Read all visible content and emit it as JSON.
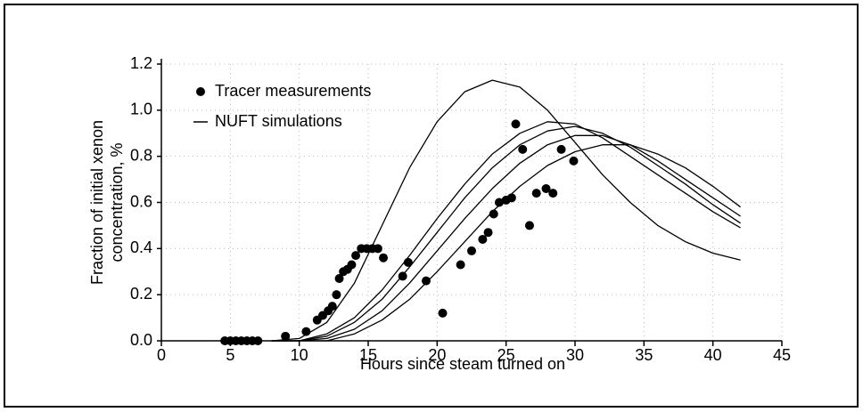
{
  "chart_data": {
    "type": "combo",
    "xlabel": "Hours since steam turned on",
    "ylabel": [
      "Fraction of initial xenon",
      "concentration, %"
    ],
    "xlim": [
      0,
      45
    ],
    "ylim": [
      0,
      1.2
    ],
    "xticks": [
      0,
      5,
      10,
      15,
      20,
      25,
      30,
      35,
      40,
      45
    ],
    "yticks": [
      {
        "value": 0,
        "label": "0.0"
      },
      0.2,
      0.4,
      0.6,
      0.8,
      {
        "value": 1,
        "label": "1.0"
      },
      1.2
    ],
    "grid": true,
    "legend": "upper left",
    "series": [
      {
        "name": "Tracer measurements",
        "type": "scatter",
        "color": "#000000",
        "x": [
          4.6,
          5,
          5.4,
          5.8,
          6.2,
          6.6,
          7,
          9,
          10.5,
          11.3,
          11.7,
          12.1,
          12.4,
          12.7,
          12.9,
          13.2,
          13.5,
          13.8,
          14.1,
          14.5,
          14.9,
          15.3,
          15.7,
          16.1,
          17.5,
          17.9,
          19.2,
          20.4,
          21.7,
          22.5,
          23.3,
          23.7,
          24.1,
          24.5,
          25,
          25.4,
          25.7,
          26.2,
          26.7,
          27.2,
          27.9,
          28.4,
          29,
          29.9
        ],
        "values": [
          0,
          0,
          0,
          0,
          0,
          0,
          0,
          0.02,
          0.04,
          0.09,
          0.11,
          0.13,
          0.15,
          0.2,
          0.27,
          0.3,
          0.31,
          0.33,
          0.37,
          0.4,
          0.4,
          0.4,
          0.4,
          0.36,
          0.28,
          0.34,
          0.26,
          0.12,
          0.33,
          0.39,
          0.44,
          0.47,
          0.55,
          0.6,
          0.61,
          0.62,
          0.94,
          0.83,
          0.5,
          0.64,
          0.66,
          0.64,
          0.83,
          0.78
        ]
      },
      {
        "name": "NUFT simulations",
        "type": "line",
        "color": "#000000",
        "x": [
          8,
          10,
          12,
          14,
          16,
          18,
          20,
          22,
          24,
          26,
          28,
          30,
          32,
          34,
          36,
          38,
          40,
          42
        ],
        "lines": [
          [
            0,
            0.01,
            0.08,
            0.25,
            0.5,
            0.75,
            0.95,
            1.08,
            1.13,
            1.1,
            1.0,
            0.86,
            0.72,
            0.6,
            0.5,
            0.43,
            0.38,
            0.35
          ],
          [
            0,
            0,
            0.03,
            0.1,
            0.22,
            0.37,
            0.53,
            0.68,
            0.81,
            0.9,
            0.95,
            0.94,
            0.88,
            0.8,
            0.72,
            0.64,
            0.56,
            0.49
          ],
          [
            0,
            0,
            0.02,
            0.08,
            0.18,
            0.32,
            0.47,
            0.62,
            0.75,
            0.85,
            0.91,
            0.93,
            0.9,
            0.84,
            0.76,
            0.68,
            0.59,
            0.51
          ],
          [
            0,
            0,
            0.01,
            0.05,
            0.13,
            0.25,
            0.39,
            0.53,
            0.66,
            0.77,
            0.85,
            0.89,
            0.89,
            0.85,
            0.78,
            0.7,
            0.62,
            0.54
          ],
          [
            0,
            0,
            0,
            0.03,
            0.09,
            0.18,
            0.3,
            0.43,
            0.56,
            0.67,
            0.76,
            0.82,
            0.85,
            0.85,
            0.81,
            0.75,
            0.67,
            0.58
          ]
        ]
      }
    ]
  }
}
